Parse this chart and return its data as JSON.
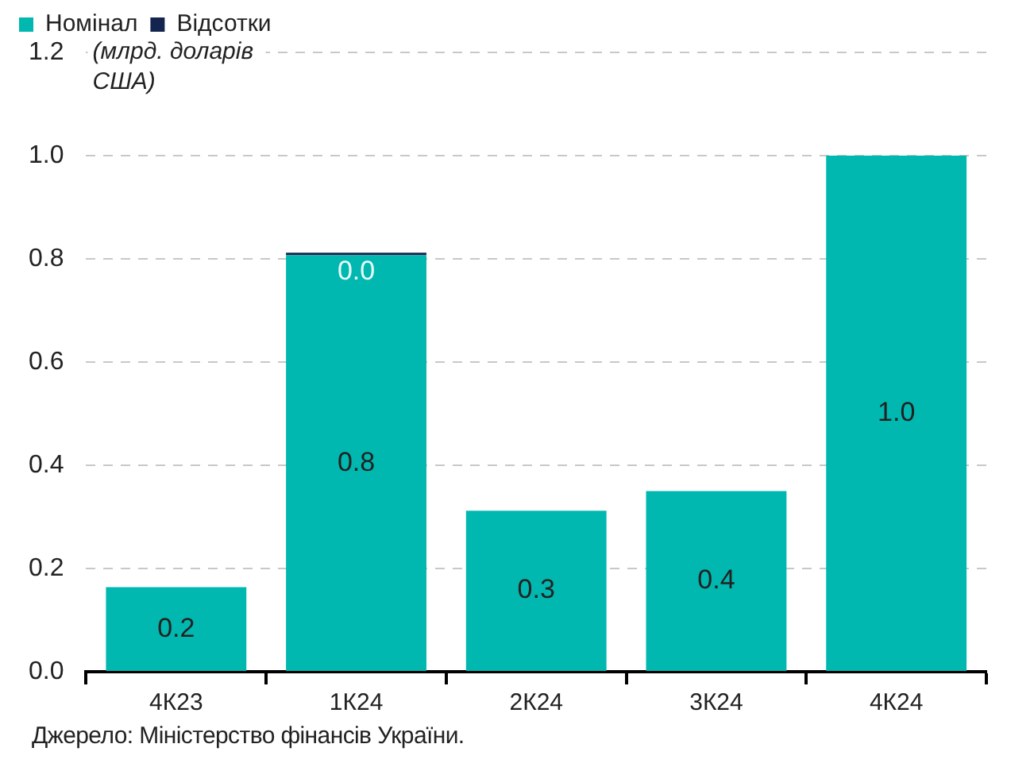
{
  "chart_data": {
    "type": "bar",
    "stacked": true,
    "ylabel": "(млрд. доларів США)",
    "categories": [
      "4К23",
      "1К24",
      "2К24",
      "3К24",
      "4К24"
    ],
    "series": [
      {
        "name": "Номінал",
        "color": "#00b8b0",
        "values": [
          0.164,
          0.807,
          0.312,
          0.35,
          1.0
        ],
        "value_labels": [
          "0.2",
          "0.8",
          "0.3",
          "0.4",
          "1.0"
        ]
      },
      {
        "name": "Відсотки",
        "color": "#13254f",
        "values": [
          null,
          0.005,
          null,
          null,
          null
        ],
        "value_labels": [
          null,
          "0.0",
          null,
          null,
          null
        ]
      }
    ],
    "ylim": [
      0,
      1.2
    ],
    "yticks": [
      "0.0",
      "0.2",
      "0.4",
      "0.6",
      "0.8",
      "1.0",
      "1.2"
    ],
    "grid": "y",
    "legend": "top left",
    "annotations": [
      "Джерело: Міністерство фінансів України."
    ]
  }
}
